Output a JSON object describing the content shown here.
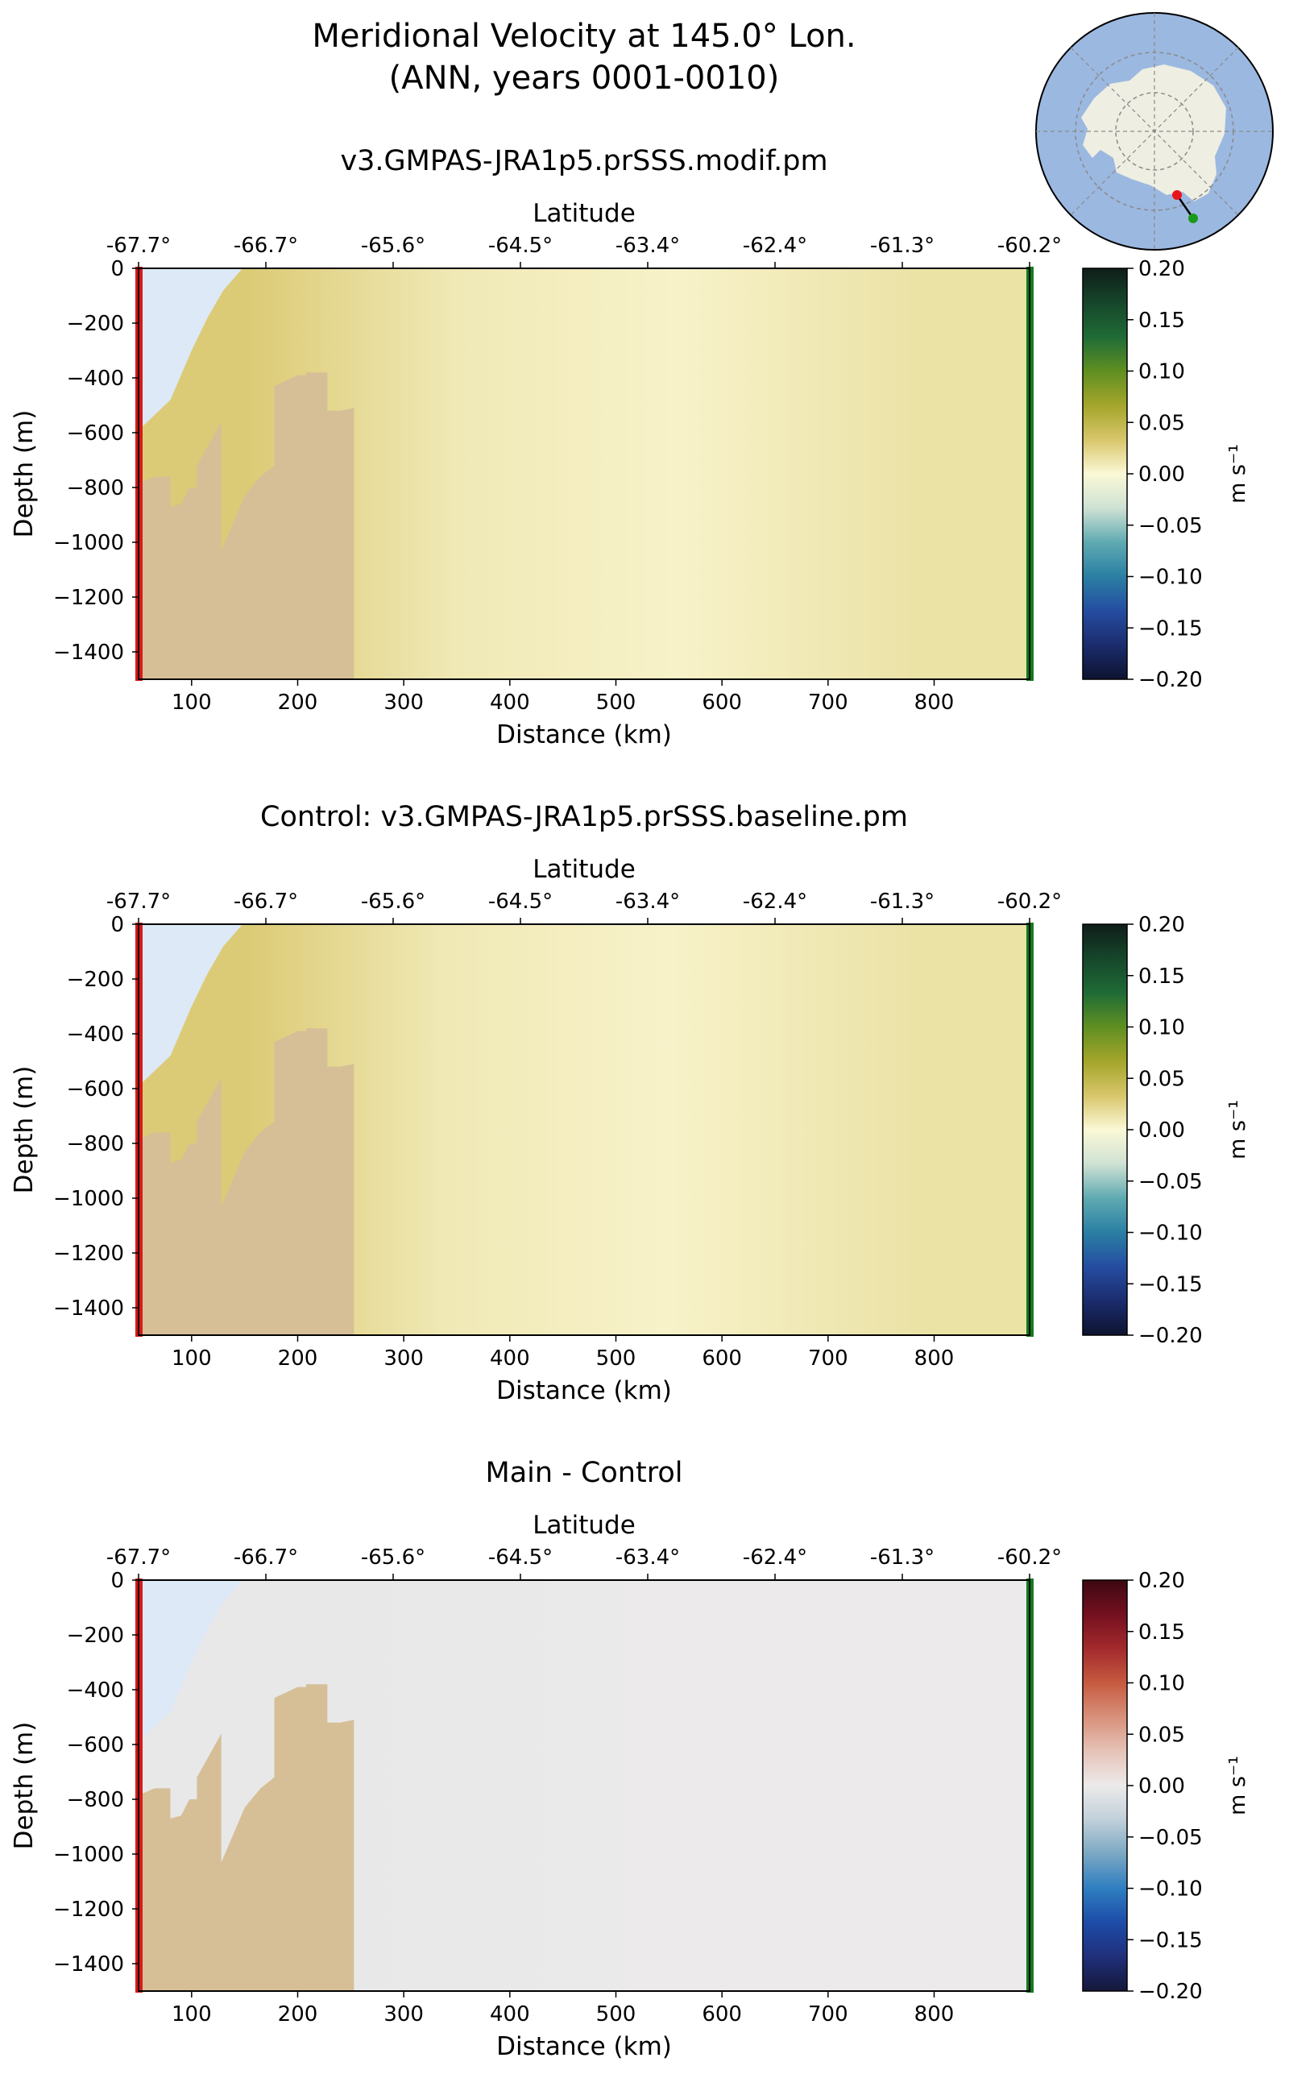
{
  "figure": {
    "title_line1": "Meridional Velocity at 145.0° Lon.",
    "title_line2": "(ANN, years 0001-0010)"
  },
  "inset_map": {
    "region": "Antarctica south-polar view",
    "transect_start_color": "#e8141c",
    "transect_end_color": "#1a9a1a",
    "ocean_color": "#9bb8e0",
    "land_color": "#eeeee2"
  },
  "colors": {
    "bathymetry": "#d6bf97",
    "ice_shelf": "#dde9f7",
    "start_marker": "#d81a1a",
    "end_marker": "#137a1e"
  },
  "chart_data": [
    {
      "type": "heatmap",
      "title": "v3.GMPAS-JRA1p5.prSSS.modif.pm",
      "xlabel": "Distance (km)",
      "ylabel": "Depth (m)",
      "top_xlabel": "Latitude",
      "xlim": [
        50,
        890
      ],
      "ylim": [
        -1500,
        0
      ],
      "xticks": [
        100,
        200,
        300,
        400,
        500,
        600,
        700,
        800
      ],
      "yticks": [
        0,
        -200,
        -400,
        -600,
        -800,
        -1000,
        -1200,
        -1400
      ],
      "lat_tick_labels": [
        "-67.7°",
        "-66.7°",
        "-65.6°",
        "-64.5°",
        "-63.4°",
        "-62.4°",
        "-61.3°",
        "-60.2°"
      ],
      "colorbar": {
        "label": "m s⁻¹",
        "vmin": -0.2,
        "vmax": 0.2,
        "ticks": [
          "0.20",
          "0.15",
          "0.10",
          "0.05",
          "0.00",
          "−0.05",
          "−0.10",
          "−0.15",
          "−0.20"
        ],
        "colormap": "delta"
      },
      "field_summary": [
        {
          "x_range_km": [
            50,
            260
          ],
          "v_ms": 0.03
        },
        {
          "x_range_km": [
            260,
            440
          ],
          "v_ms": 0.01
        },
        {
          "x_range_km": [
            440,
            680
          ],
          "v_ms": 0.004
        },
        {
          "x_range_km": [
            680,
            890
          ],
          "v_ms": 0.015
        }
      ]
    },
    {
      "type": "heatmap",
      "title": "Control: v3.GMPAS-JRA1p5.prSSS.baseline.pm",
      "xlabel": "Distance (km)",
      "ylabel": "Depth (m)",
      "top_xlabel": "Latitude",
      "xlim": [
        50,
        890
      ],
      "ylim": [
        -1500,
        0
      ],
      "xticks": [
        100,
        200,
        300,
        400,
        500,
        600,
        700,
        800
      ],
      "yticks": [
        0,
        -200,
        -400,
        -600,
        -800,
        -1000,
        -1200,
        -1400
      ],
      "lat_tick_labels": [
        "-67.7°",
        "-66.7°",
        "-65.6°",
        "-64.5°",
        "-63.4°",
        "-62.4°",
        "-61.3°",
        "-60.2°"
      ],
      "colorbar": {
        "label": "m s⁻¹",
        "vmin": -0.2,
        "vmax": 0.2,
        "ticks": [
          "0.20",
          "0.15",
          "0.10",
          "0.05",
          "0.00",
          "−0.05",
          "−0.10",
          "−0.15",
          "−0.20"
        ],
        "colormap": "delta"
      },
      "field_summary": [
        {
          "x_range_km": [
            50,
            260
          ],
          "v_ms": 0.03
        },
        {
          "x_range_km": [
            260,
            420
          ],
          "v_ms": 0.01
        },
        {
          "x_range_km": [
            420,
            680
          ],
          "v_ms": 0.004
        },
        {
          "x_range_km": [
            680,
            890
          ],
          "v_ms": 0.015
        }
      ]
    },
    {
      "type": "heatmap",
      "title": "Main - Control",
      "xlabel": "Distance (km)",
      "ylabel": "Depth (m)",
      "top_xlabel": "Latitude",
      "xlim": [
        50,
        890
      ],
      "ylim": [
        -1500,
        0
      ],
      "xticks": [
        100,
        200,
        300,
        400,
        500,
        600,
        700,
        800
      ],
      "yticks": [
        0,
        -200,
        -400,
        -600,
        -800,
        -1000,
        -1200,
        -1400
      ],
      "lat_tick_labels": [
        "-67.7°",
        "-66.7°",
        "-65.6°",
        "-64.5°",
        "-63.4°",
        "-62.4°",
        "-61.3°",
        "-60.2°"
      ],
      "colorbar": {
        "label": "m s⁻¹",
        "vmin": -0.2,
        "vmax": 0.2,
        "ticks": [
          "0.20",
          "0.15",
          "0.10",
          "0.05",
          "0.00",
          "−0.05",
          "−0.10",
          "−0.15",
          "−0.20"
        ],
        "colormap": "balance"
      },
      "field_summary": [
        {
          "x_range_km": [
            50,
            260
          ],
          "v_ms": -0.003
        },
        {
          "x_range_km": [
            260,
            890
          ],
          "v_ms": 0.0
        }
      ]
    }
  ],
  "bathymetry_profile": [
    {
      "x_km": 53,
      "depth_m": -780
    },
    {
      "x_km": 65,
      "depth_m": -760
    },
    {
      "x_km": 80,
      "depth_m": -760
    },
    {
      "x_km": 80,
      "depth_m": -870
    },
    {
      "x_km": 90,
      "depth_m": -860
    },
    {
      "x_km": 98,
      "depth_m": -800
    },
    {
      "x_km": 105,
      "depth_m": -800
    },
    {
      "x_km": 105,
      "depth_m": -720
    },
    {
      "x_km": 128,
      "depth_m": -560
    },
    {
      "x_km": 128,
      "depth_m": -1030
    },
    {
      "x_km": 150,
      "depth_m": -830
    },
    {
      "x_km": 165,
      "depth_m": -760
    },
    {
      "x_km": 178,
      "depth_m": -720
    },
    {
      "x_km": 178,
      "depth_m": -430
    },
    {
      "x_km": 200,
      "depth_m": -390
    },
    {
      "x_km": 208,
      "depth_m": -390
    },
    {
      "x_km": 208,
      "depth_m": -380
    },
    {
      "x_km": 228,
      "depth_m": -380
    },
    {
      "x_km": 228,
      "depth_m": -520
    },
    {
      "x_km": 240,
      "depth_m": -520
    },
    {
      "x_km": 253,
      "depth_m": -510
    },
    {
      "x_km": 253,
      "depth_m": -1500
    }
  ],
  "ice_shelf_profile": [
    {
      "x_km": 53,
      "depth_m": -580
    },
    {
      "x_km": 80,
      "depth_m": -480
    },
    {
      "x_km": 100,
      "depth_m": -300
    },
    {
      "x_km": 115,
      "depth_m": -180
    },
    {
      "x_km": 130,
      "depth_m": -80
    },
    {
      "x_km": 148,
      "depth_m": 0
    }
  ]
}
